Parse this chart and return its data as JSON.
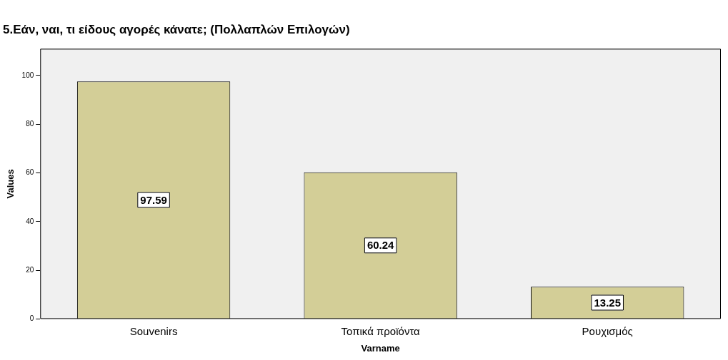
{
  "chart_data": {
    "type": "bar",
    "title": "5.Εάν, ναι, τι είδους αγορές κάνατε; (Πολλαπλών Επιλογών)",
    "xlabel": "Varname",
    "ylabel": "Values",
    "categories": [
      "Souvenirs",
      "Τοπικά προϊόντα",
      "Ρουχισμός"
    ],
    "values": [
      97.59,
      60.24,
      13.25
    ],
    "color": "#d3ce97",
    "ylim": [
      0,
      111
    ],
    "yticks": [
      0,
      20,
      40,
      60,
      80,
      100
    ],
    "grid": false,
    "data_labels": true
  }
}
